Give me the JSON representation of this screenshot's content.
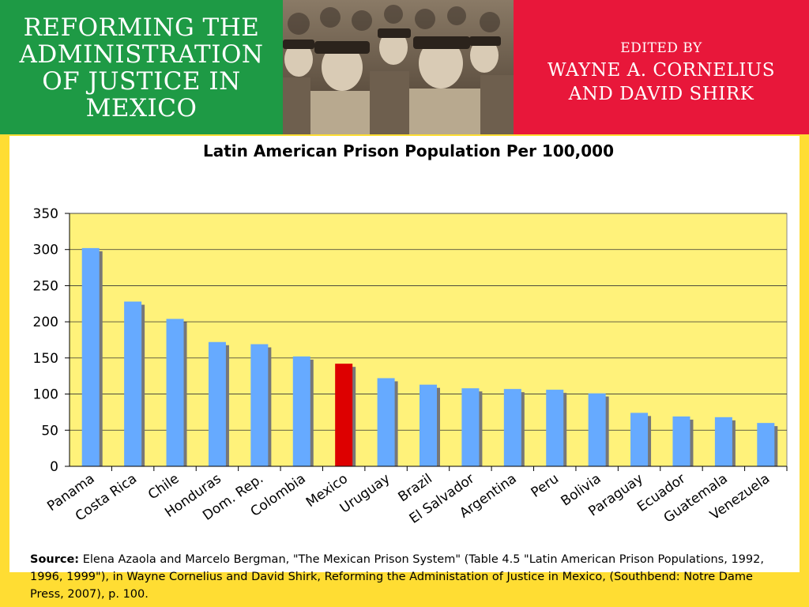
{
  "cover": {
    "title_lines": [
      "REFORMING THE",
      "ADMINISTRATION",
      "OF JUSTICE IN",
      "MEXICO"
    ],
    "edited_by": "EDITED BY",
    "editor_lines": [
      "WAYNE A. CORNELIUS",
      "AND DAVID SHIRK"
    ],
    "colors": {
      "left": "#1e9a45",
      "right": "#e8173a"
    }
  },
  "chart_data": {
    "type": "bar",
    "title": "Latin American Prison Population Per 100,000",
    "categories": [
      "Panama",
      "Costa Rica",
      "Chile",
      "Honduras",
      "Dom. Rep.",
      "Colombia",
      "Mexico",
      "Uruguay",
      "Brazil",
      "El Salvador",
      "Argentina",
      "Peru",
      "Bolivia",
      "Paraguay",
      "Ecuador",
      "Guatemala",
      "Venezuela"
    ],
    "values": [
      302,
      228,
      204,
      172,
      169,
      152,
      142,
      122,
      113,
      108,
      107,
      106,
      101,
      74,
      69,
      68,
      60
    ],
    "ylim": [
      0,
      350
    ],
    "yticks": [
      0,
      50,
      100,
      150,
      200,
      250,
      300,
      350
    ],
    "grid": true,
    "legend": "none",
    "colors": {
      "bar": "#66aaff",
      "highlight": "#dd0000",
      "plot_bg": "#fff27a",
      "shadow": "#777777"
    },
    "highlight_category": "Mexico"
  },
  "source": {
    "label": "Source:",
    "text": "Elena Azaola and Marcelo Bergman, \"The Mexican Prison System\" (Table 4.5 \"Latin American Prison Populations, 1992, 1996, 1999\"), in Wayne Cornelius and David Shirk, Reforming the Administation of Justice in Mexico, (Southbend: Notre Dame Press, 2007), p. 100."
  }
}
